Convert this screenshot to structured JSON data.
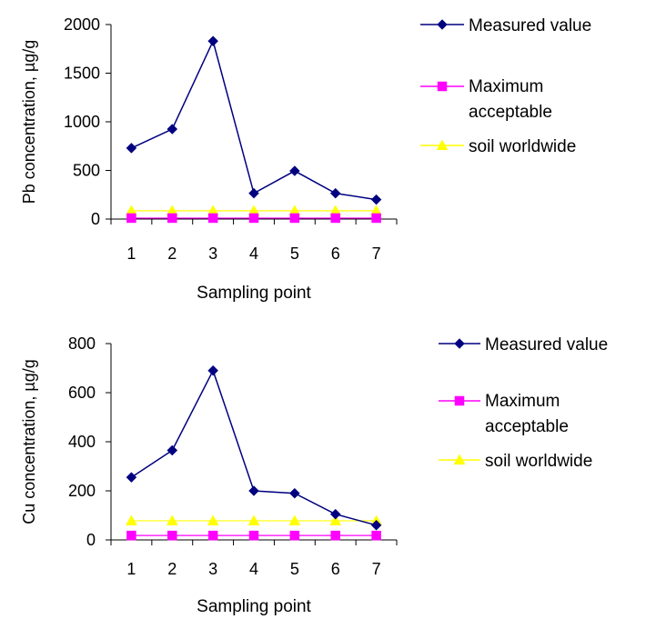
{
  "chart_data": [
    {
      "type": "line",
      "title": "",
      "xlabel": "Sampling point",
      "ylabel": "Pb concentration, µg/g",
      "x": [
        1,
        2,
        3,
        4,
        5,
        6,
        7
      ],
      "x_tick_labels": [
        "1",
        "2",
        "3",
        "4",
        "5",
        "6",
        "7"
      ],
      "ylim": [
        0,
        2000
      ],
      "y_ticks": [
        0,
        500,
        1000,
        1500,
        2000
      ],
      "y_tick_labels": [
        "0",
        "500",
        "1000",
        "1500",
        "2000"
      ],
      "grid": false,
      "legend_position": "right",
      "series": [
        {
          "name": "Measured value",
          "color": "#000080",
          "marker": "diamond",
          "values": [
            730,
            925,
            1830,
            265,
            495,
            265,
            200
          ]
        },
        {
          "name": "Maximum acceptable",
          "color": "#FF00FF",
          "marker": "square",
          "values": [
            10,
            10,
            10,
            10,
            10,
            10,
            10
          ]
        },
        {
          "name": "soil worldwide",
          "color": "#FFFF00",
          "marker": "triangle",
          "values": [
            85,
            85,
            85,
            85,
            85,
            85,
            85
          ]
        }
      ]
    },
    {
      "type": "line",
      "title": "",
      "xlabel": "Sampling point",
      "ylabel": "Cu concentration, µg/g",
      "x": [
        1,
        2,
        3,
        4,
        5,
        6,
        7
      ],
      "x_tick_labels": [
        "1",
        "2",
        "3",
        "4",
        "5",
        "6",
        "7"
      ],
      "ylim": [
        0,
        800
      ],
      "y_ticks": [
        0,
        200,
        400,
        600,
        800
      ],
      "y_tick_labels": [
        "0",
        "200",
        "400",
        "600",
        "800"
      ],
      "grid": false,
      "legend_position": "right",
      "series": [
        {
          "name": "Measured value",
          "color": "#000080",
          "marker": "diamond",
          "values": [
            255,
            365,
            690,
            200,
            190,
            105,
            60
          ]
        },
        {
          "name": "Maximum acceptable",
          "color": "#FF00FF",
          "marker": "square",
          "values": [
            18,
            18,
            18,
            18,
            18,
            18,
            18
          ]
        },
        {
          "name": "soil worldwide",
          "color": "#FFFF00",
          "marker": "triangle",
          "values": [
            78,
            78,
            78,
            78,
            78,
            78,
            78
          ]
        }
      ]
    }
  ]
}
